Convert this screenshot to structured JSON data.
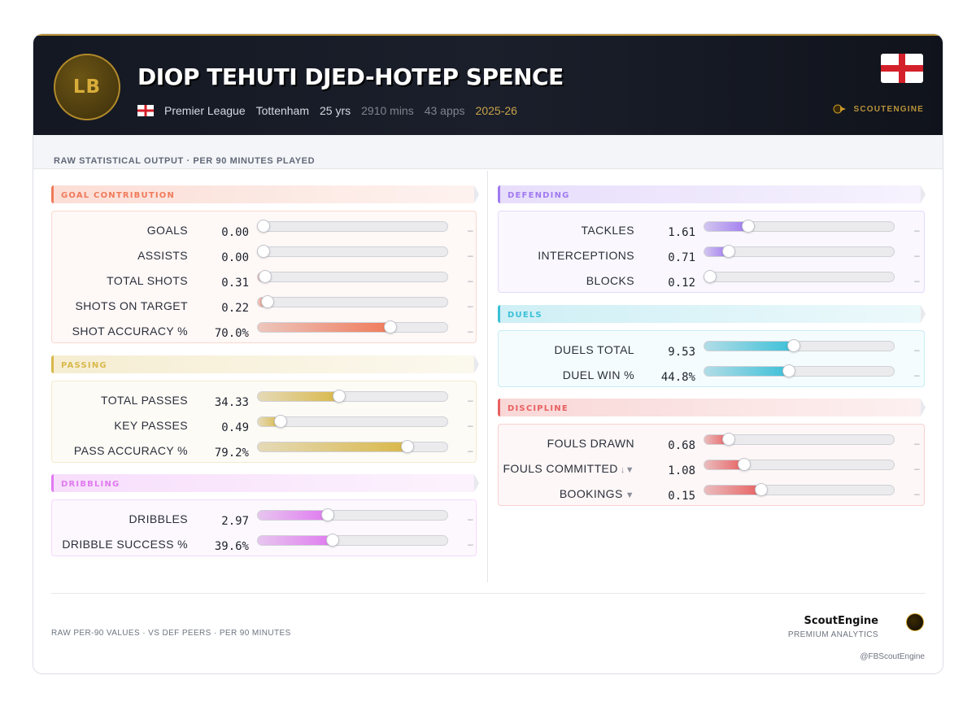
{
  "header": {
    "position_badge": "LB",
    "player_name": "DIOP TEHUTI DJED-HOTEP SPENCE",
    "league": "Premier League",
    "club": "Tottenham",
    "age": "25 yrs",
    "minutes": "2910 mins",
    "apps": "43 apps",
    "season": "2025-26",
    "flag_icon": "england-flag-icon",
    "brand": "SCOUTENGINE"
  },
  "subheader": {
    "text": "RAW STATISTICAL OUTPUT · PER 90 MINUTES PLAYED"
  },
  "colors": {
    "goal": "#f07a5a",
    "passing": "#d9b84a",
    "dribbling": "#e07af0",
    "defending": "#a07af0",
    "duels": "#3cc0d8",
    "discipline": "#e86060"
  },
  "sections": {
    "goal": {
      "title": "GOAL CONTRIBUTION",
      "rows": [
        {
          "label": "GOALS",
          "value": "0.00",
          "fill": 0.0,
          "dash": "–"
        },
        {
          "label": "ASSISTS",
          "value": "0.00",
          "fill": 0.0,
          "dash": "–"
        },
        {
          "label": "TOTAL SHOTS",
          "value": "0.31",
          "fill": 0.04,
          "dash": "–"
        },
        {
          "label": "SHOTS ON TARGET",
          "value": "0.22",
          "fill": 0.05,
          "dash": "–"
        },
        {
          "label": "SHOT ACCURACY %",
          "value": "70.0%",
          "fill": 0.7,
          "dash": "–"
        }
      ]
    },
    "passing": {
      "title": "PASSING",
      "rows": [
        {
          "label": "TOTAL PASSES",
          "value": "34.33",
          "fill": 0.43,
          "dash": "–"
        },
        {
          "label": "KEY PASSES",
          "value": "0.49",
          "fill": 0.12,
          "dash": "–"
        },
        {
          "label": "PASS ACCURACY %",
          "value": "79.2%",
          "fill": 0.79,
          "dash": "–"
        }
      ]
    },
    "dribbling": {
      "title": "DRIBBLING",
      "rows": [
        {
          "label": "DRIBBLES",
          "value": "2.97",
          "fill": 0.37,
          "dash": "–"
        },
        {
          "label": "DRIBBLE SUCCESS %",
          "value": "39.6%",
          "fill": 0.396,
          "dash": "–"
        }
      ]
    },
    "defending": {
      "title": "DEFENDING",
      "rows": [
        {
          "label": "TACKLES",
          "value": "1.61",
          "fill": 0.23,
          "dash": "–"
        },
        {
          "label": "INTERCEPTIONS",
          "value": "0.71",
          "fill": 0.13,
          "dash": "–"
        },
        {
          "label": "BLOCKS",
          "value": "0.12",
          "fill": 0.03,
          "dash": "–"
        }
      ]
    },
    "duels": {
      "title": "DUELS",
      "rows": [
        {
          "label": "DUELS TOTAL",
          "value": "9.53",
          "fill": 0.47,
          "dash": "–"
        },
        {
          "label": "DUEL WIN %",
          "value": "44.8%",
          "fill": 0.448,
          "dash": "–"
        }
      ]
    },
    "discipline": {
      "title": "DISCIPLINE",
      "rows": [
        {
          "label": "FOULS DRAWN",
          "value": "0.68",
          "fill": 0.13,
          "dash": "–",
          "ind": ""
        },
        {
          "label": "FOULS COMMITTED",
          "value": "1.08",
          "fill": 0.21,
          "dash": "–",
          "ind": "↓▼"
        },
        {
          "label": "BOOKINGS",
          "value": "0.15",
          "fill": 0.3,
          "dash": "–",
          "ind": "▼"
        }
      ]
    }
  },
  "footer": {
    "note": "RAW PER-90 VALUES · VS DEF PEERS · PER 90 MINUTES",
    "brand_name": "ScoutEngine",
    "brand_tag": "PREMIUM ANALYTICS",
    "handle": "@FBScoutEngine"
  }
}
